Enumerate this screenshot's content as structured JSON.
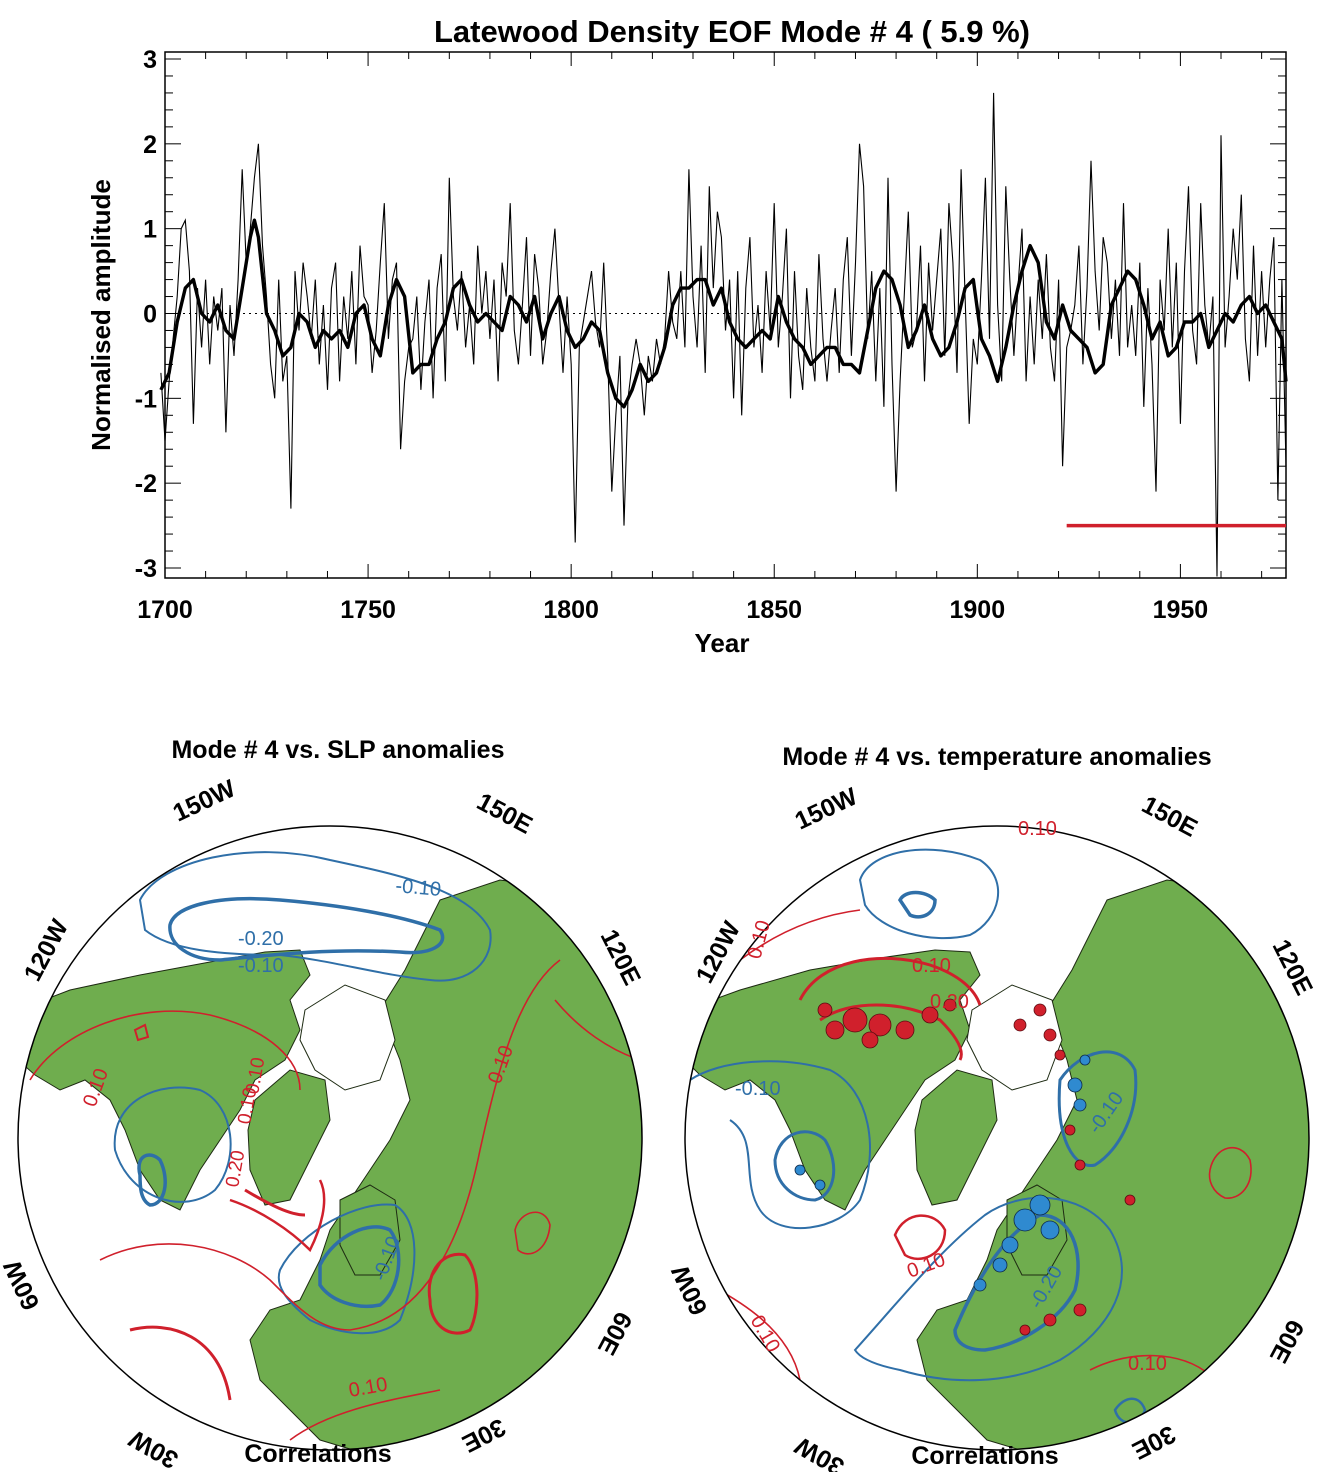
{
  "figure": {
    "title": "Latewood Density EOF Mode # 4  ( 5.9 %)"
  },
  "chart_data": [
    {
      "type": "line",
      "title": "Latewood Density EOF Mode # 4  ( 5.9 %)",
      "xlabel": "Year",
      "ylabel": "Normalised amplitude",
      "xlim": [
        1700,
        1976
      ],
      "ylim": [
        -3,
        3
      ],
      "x_ticks": [
        "1700",
        "1750",
        "1800",
        "1850",
        "1900",
        "1950"
      ],
      "y_ticks": [
        "3",
        "2",
        "1",
        "0",
        "-1",
        "-2",
        "-3"
      ],
      "zero_line": "dotted",
      "calibration_bar": {
        "x_start": 1922,
        "x_end": 1976,
        "y": -2.5,
        "color": "#d0202c"
      },
      "series": [
        {
          "style": "thin",
          "x": [
            1699,
            1700,
            1701,
            1702,
            1703,
            1704,
            1705,
            1706,
            1707,
            1708,
            1709,
            1710,
            1711,
            1712,
            1713,
            1714,
            1715,
            1716,
            1717,
            1718,
            1719,
            1720,
            1721,
            1722,
            1723,
            1724,
            1725,
            1726,
            1727,
            1728,
            1729,
            1730,
            1731,
            1732,
            1733,
            1734,
            1735,
            1736,
            1737,
            1738,
            1739,
            1740,
            1741,
            1742,
            1743,
            1744,
            1745,
            1746,
            1747,
            1748,
            1749,
            1750,
            1751,
            1752,
            1753,
            1754,
            1755,
            1756,
            1757,
            1758,
            1759,
            1760,
            1761,
            1762,
            1763,
            1764,
            1765,
            1766,
            1767,
            1768,
            1769,
            1770,
            1771,
            1772,
            1773,
            1774,
            1775,
            1776,
            1777,
            1778,
            1779,
            1780,
            1781,
            1782,
            1783,
            1784,
            1785,
            1786,
            1787,
            1788,
            1789,
            1790,
            1791,
            1792,
            1793,
            1794,
            1795,
            1796,
            1797,
            1798,
            1799,
            1800,
            1801,
            1802,
            1803,
            1804,
            1805,
            1806,
            1807,
            1808,
            1809,
            1810,
            1811,
            1812,
            1813,
            1814,
            1815,
            1816,
            1817,
            1818,
            1819,
            1820,
            1821,
            1822,
            1823,
            1824,
            1825,
            1826,
            1827,
            1828,
            1829,
            1830,
            1831,
            1832,
            1833,
            1834,
            1835,
            1836,
            1837,
            1838,
            1839,
            1840,
            1841,
            1842,
            1843,
            1844,
            1845,
            1846,
            1847,
            1848,
            1849,
            1850,
            1851,
            1852,
            1853,
            1854,
            1855,
            1856,
            1857,
            1858,
            1859,
            1860,
            1861,
            1862,
            1863,
            1864,
            1865,
            1866,
            1867,
            1868,
            1869,
            1870,
            1871,
            1872,
            1873,
            1874,
            1875,
            1876,
            1877,
            1878,
            1879,
            1880,
            1881,
            1882,
            1883,
            1884,
            1885,
            1886,
            1887,
            1888,
            1889,
            1890,
            1891,
            1892,
            1893,
            1894,
            1895,
            1896,
            1897,
            1898,
            1899,
            1900,
            1901,
            1902,
            1903,
            1904,
            1905,
            1906,
            1907,
            1908,
            1909,
            1910,
            1911,
            1912,
            1913,
            1914,
            1915,
            1916,
            1917,
            1918,
            1919,
            1920,
            1921,
            1922,
            1923,
            1924,
            1925,
            1926,
            1927,
            1928,
            1929,
            1930,
            1931,
            1932,
            1933,
            1934,
            1935,
            1936,
            1937,
            1938,
            1939,
            1940,
            1941,
            1942,
            1943,
            1944,
            1945,
            1946,
            1947,
            1948,
            1949,
            1950,
            1951,
            1952,
            1953,
            1954,
            1955,
            1956,
            1957,
            1958,
            1959,
            1960,
            1961,
            1962,
            1963,
            1964,
            1965,
            1966,
            1967,
            1968,
            1969,
            1970,
            1971,
            1972,
            1973,
            1974,
            1975,
            1976
          ],
          "y": [
            -0.7,
            -1.5,
            -0.8,
            -0.3,
            0.2,
            1.0,
            1.1,
            0.5,
            -1.3,
            0.3,
            -0.4,
            0.4,
            -0.6,
            0.2,
            -0.2,
            0.3,
            -1.4,
            0.1,
            -0.5,
            0.4,
            1.7,
            0.6,
            1.0,
            1.6,
            2.0,
            0.8,
            0.2,
            -0.6,
            -1.0,
            0.4,
            -0.8,
            -0.5,
            -2.3,
            0.5,
            -0.2,
            0.6,
            0.2,
            -0.3,
            0.4,
            -0.6,
            0.1,
            -0.9,
            0.3,
            0.6,
            -0.8,
            0.2,
            -0.3,
            0.5,
            -0.6,
            0.8,
            0.2,
            0.1,
            -0.7,
            -0.2,
            0.6,
            1.3,
            -0.3,
            0.4,
            0.6,
            -1.6,
            -0.8,
            -0.4,
            -0.3,
            0.2,
            -0.9,
            -0.1,
            0.4,
            -1.0,
            0.3,
            0.7,
            -0.8,
            1.6,
            0.2,
            -0.2,
            0.5,
            -0.4,
            0.1,
            -0.6,
            0.8,
            0.0,
            0.5,
            -0.3,
            0.4,
            -0.8,
            0.6,
            0.2,
            1.3,
            -0.2,
            -0.6,
            0.1,
            0.9,
            -0.5,
            0.7,
            0.3,
            -0.6,
            -0.2,
            0.5,
            1.0,
            0.1,
            -0.7,
            0.2,
            -0.6,
            -2.7,
            -0.4,
            -0.1,
            0.2,
            0.5,
            -0.1,
            -0.4,
            0.6,
            -0.5,
            -2.1,
            -1.2,
            -0.5,
            -2.5,
            -1.0,
            -0.6,
            -0.3,
            -0.6,
            -1.2,
            -0.5,
            -0.8,
            -0.3,
            -0.6,
            -0.3,
            0.5,
            -0.1,
            -0.3,
            0.5,
            -0.4,
            1.7,
            0.2,
            -0.4,
            0.8,
            -0.7,
            1.5,
            0.3,
            1.2,
            0.9,
            -0.2,
            0.4,
            -1.0,
            0.5,
            -1.2,
            0.3,
            0.9,
            -0.4,
            0.1,
            -0.7,
            0.5,
            -0.2,
            1.3,
            -0.4,
            0.2,
            1.0,
            -1.0,
            0.5,
            -0.5,
            -0.9,
            0.3,
            -0.4,
            -0.8,
            0.7,
            -0.3,
            -0.8,
            -0.2,
            0.3,
            -0.7,
            0.4,
            0.9,
            -0.5,
            0.6,
            2.0,
            1.5,
            -0.3,
            0.5,
            -0.8,
            0.3,
            -1.1,
            1.6,
            -0.6,
            -2.1,
            -0.8,
            0.2,
            1.2,
            -0.4,
            -0.2,
            0.8,
            -0.8,
            0.6,
            -0.2,
            0.4,
            1.0,
            -0.5,
            1.3,
            0.6,
            -0.7,
            1.7,
            0.2,
            -1.3,
            -0.3,
            -0.6,
            0.4,
            1.6,
            -0.3,
            2.6,
            0.1,
            -0.8,
            1.5,
            0.4,
            -0.5,
            0.3,
            1.0,
            -0.8,
            0.2,
            -0.6,
            0.4,
            -0.3,
            0.7,
            -0.4,
            -0.8,
            0.4,
            -1.8,
            -0.4,
            -0.2,
            0.1,
            0.8,
            -0.6,
            0.3,
            1.8,
            0.5,
            -0.2,
            0.9,
            0.6,
            -0.3,
            0.4,
            -0.5,
            1.3,
            -0.4,
            0.1,
            -0.5,
            0.6,
            -1.1,
            0.3,
            -0.6,
            -2.1,
            0.4,
            -0.2,
            1.0,
            -0.4,
            0.6,
            -1.3,
            0.5,
            1.5,
            -0.2,
            -0.6,
            1.3,
            0.1,
            -0.4,
            0.2,
            -3.1,
            2.1,
            -0.4,
            0.2,
            1.0,
            0.4,
            1.4,
            -0.3,
            -0.8,
            0.8,
            -0.5,
            0.5,
            -0.4,
            0.4,
            0.9,
            -2.2,
            0.4,
            -1.8
          ],
          "color": "#000000"
        },
        {
          "style": "smoothed",
          "x": [
            1699,
            1701,
            1703,
            1705,
            1707,
            1709,
            1711,
            1713,
            1715,
            1717,
            1719,
            1721,
            1722,
            1723,
            1725,
            1727,
            1729,
            1731,
            1733,
            1735,
            1737,
            1739,
            1741,
            1743,
            1745,
            1747,
            1749,
            1751,
            1753,
            1755,
            1757,
            1759,
            1761,
            1763,
            1765,
            1767,
            1769,
            1771,
            1773,
            1775,
            1777,
            1779,
            1781,
            1783,
            1785,
            1787,
            1789,
            1791,
            1793,
            1795,
            1797,
            1799,
            1801,
            1803,
            1805,
            1807,
            1809,
            1811,
            1813,
            1815,
            1817,
            1819,
            1821,
            1823,
            1825,
            1827,
            1829,
            1831,
            1833,
            1835,
            1837,
            1839,
            1841,
            1843,
            1845,
            1847,
            1849,
            1851,
            1853,
            1855,
            1857,
            1859,
            1861,
            1863,
            1865,
            1867,
            1869,
            1871,
            1873,
            1875,
            1877,
            1879,
            1881,
            1883,
            1885,
            1887,
            1889,
            1891,
            1893,
            1895,
            1897,
            1899,
            1901,
            1903,
            1905,
            1907,
            1909,
            1911,
            1913,
            1915,
            1917,
            1919,
            1921,
            1923,
            1925,
            1927,
            1929,
            1931,
            1933,
            1935,
            1937,
            1939,
            1941,
            1943,
            1945,
            1947,
            1949,
            1951,
            1953,
            1955,
            1957,
            1959,
            1961,
            1963,
            1965,
            1967,
            1969,
            1971,
            1973,
            1975,
            1976
          ],
          "y": [
            -0.9,
            -0.7,
            -0.1,
            0.3,
            0.4,
            0.0,
            -0.1,
            0.1,
            -0.2,
            -0.3,
            0.3,
            0.9,
            1.1,
            0.9,
            0.0,
            -0.2,
            -0.5,
            -0.4,
            0.0,
            -0.1,
            -0.4,
            -0.2,
            -0.3,
            -0.2,
            -0.4,
            0.0,
            0.1,
            -0.3,
            -0.5,
            0.1,
            0.4,
            0.2,
            -0.7,
            -0.6,
            -0.6,
            -0.3,
            -0.1,
            0.3,
            0.4,
            0.1,
            -0.1,
            0.0,
            -0.1,
            -0.2,
            0.2,
            0.1,
            -0.1,
            0.2,
            -0.3,
            0.0,
            0.2,
            -0.2,
            -0.4,
            -0.3,
            -0.1,
            -0.2,
            -0.7,
            -1.0,
            -1.1,
            -0.9,
            -0.6,
            -0.8,
            -0.7,
            -0.4,
            0.1,
            0.3,
            0.3,
            0.4,
            0.4,
            0.1,
            0.3,
            -0.1,
            -0.3,
            -0.4,
            -0.3,
            -0.2,
            -0.3,
            0.2,
            -0.1,
            -0.3,
            -0.4,
            -0.6,
            -0.5,
            -0.4,
            -0.4,
            -0.6,
            -0.6,
            -0.7,
            -0.2,
            0.3,
            0.5,
            0.4,
            0.1,
            -0.4,
            -0.2,
            0.1,
            -0.3,
            -0.5,
            -0.4,
            -0.1,
            0.3,
            0.4,
            -0.3,
            -0.5,
            -0.8,
            -0.4,
            0.1,
            0.5,
            0.8,
            0.6,
            -0.1,
            -0.3,
            0.1,
            -0.2,
            -0.3,
            -0.4,
            -0.7,
            -0.6,
            0.1,
            0.3,
            0.5,
            0.4,
            0.1,
            -0.3,
            -0.1,
            -0.5,
            -0.4,
            -0.1,
            -0.1,
            0.0,
            -0.4,
            -0.2,
            0.0,
            -0.1,
            0.1,
            0.2,
            0.0,
            0.1,
            -0.1,
            -0.3,
            -0.8
          ],
          "color": "#000000"
        }
      ]
    },
    {
      "type": "map",
      "title": "Mode # 4 vs. SLP anomalies",
      "caption": "Correlations",
      "longitude_labels": [
        "150W",
        "150E",
        "120W",
        "120E",
        "60W",
        "60E",
        "30W",
        "30E"
      ],
      "contour_labels": [
        "-0.10",
        "-0.20",
        "-0.10",
        "0.10",
        "0.10",
        "0.10",
        "0.10",
        "0.20",
        "-0.10",
        "0.10"
      ]
    },
    {
      "type": "map",
      "title": "Mode # 4 vs. temperature anomalies",
      "caption": "Correlations",
      "longitude_labels": [
        "150W",
        "150E",
        "120W",
        "120E",
        "60W",
        "60E",
        "30W",
        "30E"
      ],
      "contour_labels": [
        "0.10",
        "0.10",
        "0.10",
        "0.20",
        "-0.10",
        "-0.10",
        "0.10",
        "0.10",
        "-0.20",
        "0.10"
      ]
    }
  ],
  "colors": {
    "land": "#6fad4e",
    "land_stroke": "#1d2a12",
    "positive_contour": "#d0202c",
    "negative_contour": "#2f6fa8",
    "axis": "#000000"
  }
}
